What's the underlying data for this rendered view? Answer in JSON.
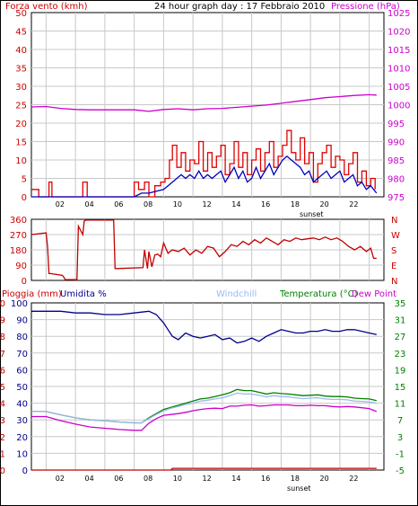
{
  "header": {
    "title": "24 hour graph day : 17 Febbraio 2010",
    "wind_label": "Forza vento (kmh)",
    "pressure_label": "Pressione (hPa)"
  },
  "bottom": {
    "rain_label": "Pioggia (mm)",
    "humidity_label": "Umidita %",
    "windchill_label": "Windchill",
    "temp_label": "Temperatura (°C)",
    "dew_label": "Dew Point"
  },
  "sunset_label": "sunset",
  "colors": {
    "frame": "#000000",
    "grid": "#c8c8c8",
    "wind_gust": "#e00000",
    "wind_avg": "#0000c0",
    "pressure": "#cc00cc",
    "direction": "#c00000",
    "humidity": "#00008b",
    "temperature": "#008000",
    "dew_point": "#cc00cc",
    "windchill": "#99bbee",
    "rain": "#c00000"
  },
  "chart_data": [
    {
      "type": "line",
      "name": "wind_pressure",
      "x_ticks": [
        "02",
        "04",
        "06",
        "08",
        "10",
        "12",
        "14",
        "16",
        "18",
        "20",
        "22"
      ],
      "ylim_left": [
        0,
        50
      ],
      "yticks_left": [
        0,
        5,
        10,
        15,
        20,
        25,
        30,
        35,
        40,
        45,
        50
      ],
      "ylim_right": [
        975,
        1025
      ],
      "yticks_right": [
        975,
        980,
        985,
        990,
        995,
        1000,
        1005,
        1010,
        1015,
        1020,
        1025
      ],
      "series": [
        {
          "name": "Pressione (hPa)",
          "axis": "right",
          "x": [
            0,
            1,
            2,
            3,
            4,
            5,
            6,
            7,
            8,
            9,
            10,
            11,
            12,
            13,
            14,
            15,
            16,
            17,
            18,
            19,
            20,
            21,
            22,
            23,
            23.5
          ],
          "values": [
            999.4,
            999.5,
            999.0,
            998.7,
            998.6,
            998.6,
            998.6,
            998.6,
            998.2,
            998.7,
            998.9,
            998.6,
            998.9,
            999.0,
            999.3,
            999.6,
            999.9,
            1000.4,
            1000.9,
            1001.4,
            1001.9,
            1002.2,
            1002.5,
            1002.7,
            1002.6
          ]
        },
        {
          "name": "Wind gust",
          "axis": "left",
          "x": [
            0,
            0.5,
            1,
            1.2,
            1.4,
            1.7,
            2,
            2.5,
            3,
            3.5,
            3.8,
            4.1,
            4.5,
            5,
            5.5,
            6,
            6.5,
            7,
            7.3,
            7.7,
            8,
            8.4,
            8.8,
            9.1,
            9.4,
            9.6,
            9.9,
            10.2,
            10.5,
            10.8,
            11.1,
            11.4,
            11.7,
            12,
            12.3,
            12.6,
            12.9,
            13.2,
            13.5,
            13.8,
            14.1,
            14.4,
            14.7,
            15,
            15.3,
            15.6,
            15.9,
            16.2,
            16.5,
            16.8,
            17.1,
            17.4,
            17.7,
            18,
            18.3,
            18.6,
            18.9,
            19.2,
            19.5,
            19.8,
            20.1,
            20.4,
            20.7,
            21,
            21.3,
            21.6,
            21.9,
            22.2,
            22.5,
            22.8,
            23.1,
            23.4
          ],
          "values": [
            2,
            0,
            0,
            4,
            0,
            0,
            0,
            0,
            0,
            4,
            0,
            0,
            0,
            0,
            0,
            0,
            0,
            4,
            2,
            4,
            0,
            3,
            4,
            5,
            10,
            14,
            8,
            12,
            7,
            10,
            9,
            15,
            7,
            12,
            8,
            11,
            14,
            6,
            9,
            15,
            8,
            12,
            6,
            10,
            13,
            7,
            12,
            15,
            8,
            11,
            14,
            18,
            12,
            10,
            16,
            9,
            12,
            4,
            9,
            12,
            14,
            8,
            11,
            10,
            6,
            9,
            12,
            4,
            7,
            3,
            5,
            2
          ]
        },
        {
          "name": "Wind average",
          "axis": "left",
          "x": [
            0,
            7,
            7.5,
            8,
            8.5,
            9,
            9.3,
            9.6,
            9.9,
            10.2,
            10.5,
            10.8,
            11.1,
            11.4,
            11.7,
            12,
            12.3,
            12.6,
            12.9,
            13.2,
            13.5,
            13.8,
            14.1,
            14.4,
            14.7,
            15,
            15.3,
            15.6,
            15.9,
            16.2,
            16.5,
            16.8,
            17.1,
            17.4,
            17.7,
            18,
            18.3,
            18.6,
            18.9,
            19.2,
            19.5,
            19.8,
            20.1,
            20.4,
            20.7,
            21,
            21.3,
            21.6,
            21.9,
            22.2,
            22.5,
            22.8,
            23.1,
            23.5
          ],
          "values": [
            0,
            0,
            1,
            1,
            1.5,
            2,
            3,
            4,
            5,
            6,
            5,
            6,
            5,
            7,
            5,
            6,
            5,
            6,
            7,
            4,
            6,
            8,
            5,
            7,
            4,
            5,
            8,
            5,
            7,
            9,
            6,
            8,
            10,
            11,
            10,
            9,
            8,
            6,
            7,
            4,
            5,
            6,
            7,
            5,
            6,
            7,
            4,
            5,
            6,
            3,
            4,
            2,
            3,
            1
          ]
        }
      ]
    },
    {
      "type": "line",
      "name": "wind_direction",
      "ylim": [
        0,
        360
      ],
      "yticks_left": [
        0,
        90,
        180,
        270,
        360
      ],
      "yticks_right": [
        "N",
        "E",
        "S",
        "W",
        "N"
      ],
      "series": [
        {
          "name": "Wind direction",
          "x": [
            0,
            1,
            1.1,
            1.2,
            1.3,
            2.1,
            2.2,
            2.3,
            3.1,
            3.2,
            3.5,
            3.6,
            3.7,
            5.6,
            5.7,
            5.8,
            7.6,
            7.7,
            7.9,
            8.0,
            8.2,
            8.4,
            8.6,
            8.8,
            9.0,
            9.3,
            9.6,
            10.0,
            10.4,
            10.8,
            11.2,
            11.6,
            12.0,
            12.4,
            12.8,
            13.2,
            13.6,
            14.0,
            14.4,
            14.8,
            15.2,
            15.6,
            16.0,
            16.4,
            16.8,
            17.2,
            17.6,
            18.0,
            18.4,
            18.8,
            19.2,
            19.6,
            20.0,
            20.4,
            20.8,
            21.2,
            21.6,
            22.0,
            22.4,
            22.8,
            23.1,
            23.3,
            23.5
          ],
          "values": [
            270,
            280,
            200,
            40,
            40,
            30,
            20,
            5,
            5,
            320,
            270,
            350,
            355,
            355,
            70,
            70,
            75,
            180,
            70,
            170,
            80,
            150,
            155,
            140,
            220,
            160,
            180,
            170,
            190,
            150,
            180,
            160,
            200,
            190,
            140,
            170,
            210,
            200,
            230,
            210,
            240,
            220,
            250,
            230,
            210,
            240,
            230,
            250,
            240,
            245,
            250,
            240,
            255,
            240,
            250,
            230,
            200,
            180,
            200,
            170,
            190,
            130,
            130
          ]
        }
      ]
    },
    {
      "type": "line",
      "name": "humidity_temperature",
      "ylim_left_rain": [
        0,
        10
      ],
      "ylim_left_humidity": [
        0,
        100
      ],
      "ylim_right": [
        -5,
        35
      ],
      "yticks_left_rain": [
        0,
        1,
        2,
        3,
        4,
        5,
        6,
        7,
        8,
        9,
        10
      ],
      "yticks_left_humidity": [
        0,
        10,
        20,
        30,
        40,
        50,
        60,
        70,
        80,
        90,
        100
      ],
      "yticks_right": [
        -5,
        -1,
        3,
        7,
        11,
        15,
        19,
        23,
        27,
        31,
        35
      ],
      "series": [
        {
          "name": "Umidita %",
          "axis": "humidity",
          "x": [
            0,
            1,
            2,
            3,
            4,
            5,
            6,
            7,
            8,
            8.5,
            9,
            9.3,
            9.6,
            10,
            10.5,
            11,
            11.5,
            12,
            12.5,
            13,
            13.5,
            14,
            14.5,
            15,
            15.5,
            16,
            16.5,
            17,
            17.5,
            18,
            18.5,
            19,
            19.5,
            20,
            20.5,
            21,
            21.5,
            22,
            22.5,
            23,
            23.5
          ],
          "values": [
            95,
            95,
            95,
            94,
            94,
            93,
            93,
            94,
            95,
            93,
            88,
            84,
            80,
            78,
            82,
            80,
            79,
            80,
            81,
            78,
            79,
            76,
            77,
            79,
            77,
            80,
            82,
            84,
            83,
            82,
            82,
            83,
            83,
            84,
            83,
            83,
            84,
            84,
            83,
            82,
            81
          ]
        },
        {
          "name": "Temperatura (°C)",
          "axis": "temp",
          "x": [
            0,
            1,
            2,
            3,
            4,
            5,
            6,
            7,
            7.5,
            8,
            8.5,
            9,
            9.5,
            10,
            10.5,
            11,
            11.5,
            12,
            12.5,
            13,
            13.5,
            14,
            14.5,
            15,
            15.5,
            16,
            16.5,
            17,
            17.5,
            18,
            18.5,
            19,
            19.5,
            20,
            20.5,
            21,
            21.5,
            22,
            22.5,
            23,
            23.5
          ],
          "values": [
            9,
            9,
            8.2,
            7.5,
            7,
            6.8,
            6.5,
            6.3,
            6.3,
            7.5,
            8.5,
            9.5,
            10,
            10.5,
            11,
            11.5,
            12,
            12.2,
            12.6,
            13,
            13.5,
            14.3,
            14,
            14,
            13.6,
            13.2,
            13.5,
            13.3,
            13.2,
            13,
            12.8,
            12.9,
            13,
            12.7,
            12.6,
            12.6,
            12.5,
            12.2,
            12.1,
            12,
            11.6
          ]
        },
        {
          "name": "Dew Point",
          "axis": "temp",
          "x": [
            0,
            1,
            2,
            3,
            4,
            5,
            6,
            7,
            7.5,
            8,
            8.5,
            9,
            9.5,
            10,
            10.5,
            11,
            11.5,
            12,
            12.5,
            13,
            13.5,
            14,
            14.5,
            15,
            15.5,
            16,
            16.5,
            17,
            17.5,
            18,
            18.5,
            19,
            19.5,
            20,
            20.5,
            21,
            21.5,
            22,
            22.5,
            23,
            23.5
          ],
          "values": [
            7.8,
            7.8,
            6.8,
            6,
            5.3,
            5,
            4.7,
            4.5,
            4.5,
            6.2,
            7.3,
            8.1,
            8.3,
            8.5,
            8.8,
            9.2,
            9.5,
            9.7,
            9.8,
            9.7,
            10.3,
            10.3,
            10.5,
            10.6,
            10.3,
            10.4,
            10.6,
            10.6,
            10.6,
            10.4,
            10.4,
            10.5,
            10.4,
            10.4,
            10.2,
            10.1,
            10.2,
            10.1,
            9.9,
            9.7,
            9.0
          ]
        },
        {
          "name": "Windchill",
          "axis": "temp",
          "x": [
            0,
            1,
            2,
            3,
            4,
            5,
            6,
            7,
            7.5,
            8,
            8.5,
            9,
            9.5,
            10,
            10.5,
            11,
            11.5,
            12,
            12.5,
            13,
            13.5,
            14,
            14.5,
            15,
            15.5,
            16,
            16.5,
            17,
            17.5,
            18,
            18.5,
            19,
            19.5,
            20,
            20.5,
            21,
            21.5,
            22,
            22.5,
            23,
            23.5
          ],
          "values": [
            9,
            9,
            8.2,
            7.5,
            7,
            6.8,
            6.5,
            6.3,
            6.3,
            7.3,
            8.3,
            9.2,
            9.8,
            10.2,
            10.7,
            11,
            11.5,
            11.7,
            12,
            12.3,
            12.8,
            13.4,
            13.2,
            13.2,
            12.9,
            12.5,
            12.8,
            12.6,
            12.5,
            12.3,
            12.1,
            12.2,
            12.3,
            12,
            11.9,
            11.9,
            11.8,
            11.5,
            11.4,
            11.3,
            11
          ]
        },
        {
          "name": "Pioggia (mm)",
          "axis": "rain",
          "x": [
            0,
            9.5,
            9.6,
            23.5
          ],
          "values": [
            0,
            0,
            0.1,
            0.1
          ]
        }
      ]
    }
  ]
}
